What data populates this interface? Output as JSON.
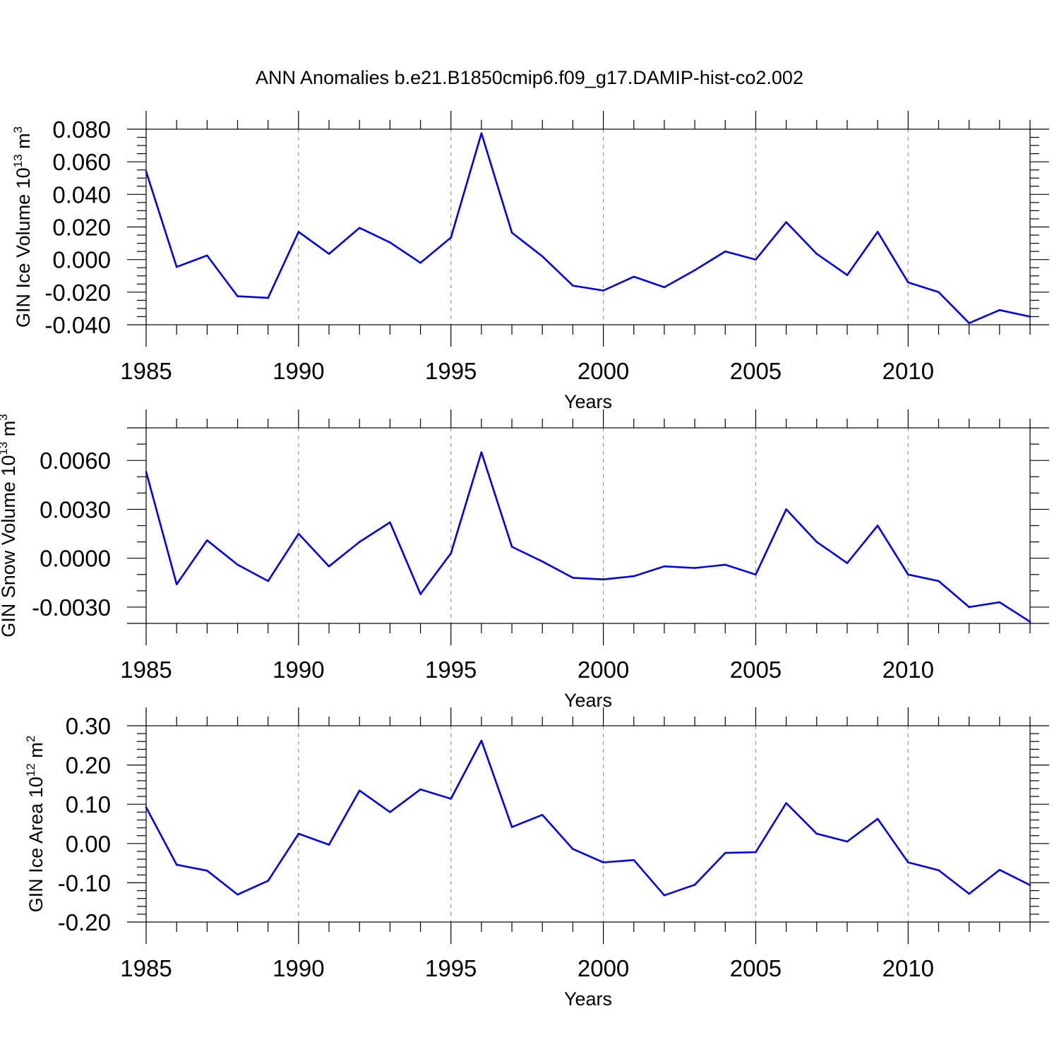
{
  "title": "ANN Anomalies b.e21.B1850cmip6.f09_g17.DAMIP-hist-co2.002",
  "colors": {
    "line": "#0000ee",
    "axis": "#000000",
    "grid": "#8c8c8c"
  },
  "chart_data": [
    {
      "type": "line",
      "ylabel": {
        "prefix": "GIN Ice Volume 10",
        "exp": "13",
        "unit": " m",
        "unit_exp": "3"
      },
      "xlabel": "Years",
      "xlim": [
        1985,
        2014
      ],
      "ylim": [
        -0.04,
        0.08
      ],
      "yticks": [
        "-0.040",
        "-0.020",
        "0.000",
        "0.020",
        "0.040",
        "0.060",
        "0.080"
      ],
      "yticks_values": [
        -0.04,
        -0.02,
        0.0,
        0.02,
        0.04,
        0.06,
        0.08
      ],
      "ymin_minor_step": 0.005,
      "xticks": [
        "1985",
        "1990",
        "1995",
        "2000",
        "2005",
        "2010"
      ],
      "xticks_values": [
        1985,
        1990,
        1995,
        2000,
        2005,
        2010
      ],
      "grid": "vertical-dashed",
      "x": [
        1985,
        1986,
        1987,
        1988,
        1989,
        1990,
        1991,
        1992,
        1993,
        1994,
        1995,
        1996,
        1997,
        1998,
        1999,
        2000,
        2001,
        2002,
        2003,
        2004,
        2005,
        2006,
        2007,
        2008,
        2009,
        2010,
        2011,
        2012,
        2013,
        2014
      ],
      "values": [
        0.054,
        -0.0045,
        0.0025,
        -0.0225,
        -0.0235,
        0.017,
        0.0035,
        0.0195,
        0.0105,
        -0.002,
        0.0135,
        0.0775,
        0.0165,
        0.002,
        -0.016,
        -0.019,
        -0.0105,
        -0.017,
        -0.0065,
        0.005,
        0.0,
        0.023,
        0.0035,
        -0.0095,
        0.017,
        -0.014,
        -0.02,
        -0.039,
        -0.031,
        -0.035
      ]
    },
    {
      "type": "line",
      "ylabel": {
        "prefix": "GIN Snow Volume 10",
        "exp": "13",
        "unit": " m",
        "unit_exp": "3"
      },
      "xlabel": "Years",
      "xlim": [
        1985,
        2014
      ],
      "ylim": [
        -0.004,
        0.008
      ],
      "yticks": [
        "-0.0030",
        "0.0000",
        "0.0030",
        "0.0060"
      ],
      "yticks_values": [
        -0.003,
        0.0,
        0.003,
        0.006
      ],
      "ymin_minor_step": 0.001,
      "xticks": [
        "1985",
        "1990",
        "1995",
        "2000",
        "2005",
        "2010"
      ],
      "xticks_values": [
        1985,
        1990,
        1995,
        2000,
        2005,
        2010
      ],
      "grid": "vertical-dashed",
      "x": [
        1985,
        1986,
        1987,
        1988,
        1989,
        1990,
        1991,
        1992,
        1993,
        1994,
        1995,
        1996,
        1997,
        1998,
        1999,
        2000,
        2001,
        2002,
        2003,
        2004,
        2005,
        2006,
        2007,
        2008,
        2009,
        2010,
        2011,
        2012,
        2013,
        2014
      ],
      "values": [
        0.0053,
        -0.0016,
        0.0011,
        -0.0004,
        -0.0014,
        0.0015,
        -0.0005,
        0.001,
        0.0022,
        -0.0022,
        0.0003,
        0.0065,
        0.0007,
        -0.0002,
        -0.0012,
        -0.0013,
        -0.0011,
        -0.0005,
        -0.0006,
        -0.0004,
        -0.001,
        0.003,
        0.001,
        -0.0003,
        0.002,
        -0.001,
        -0.0014,
        -0.003,
        -0.0027,
        -0.0039
      ]
    },
    {
      "type": "line",
      "ylabel": {
        "prefix": "GIN Ice Area 10",
        "exp": "12",
        "unit": " m",
        "unit_exp": "2"
      },
      "xlabel": "Years",
      "xlim": [
        1985,
        2014
      ],
      "ylim": [
        -0.2,
        0.3
      ],
      "yticks": [
        "-0.20",
        "-0.10",
        "0.00",
        "0.10",
        "0.20",
        "0.30"
      ],
      "yticks_values": [
        -0.2,
        -0.1,
        0.0,
        0.1,
        0.2,
        0.3
      ],
      "ymin_minor_step": 0.02,
      "xticks": [
        "1985",
        "1990",
        "1995",
        "2000",
        "2005",
        "2010"
      ],
      "xticks_values": [
        1985,
        1990,
        1995,
        2000,
        2005,
        2010
      ],
      "grid": "vertical-dashed",
      "x": [
        1985,
        1986,
        1987,
        1988,
        1989,
        1990,
        1991,
        1992,
        1993,
        1994,
        1995,
        1996,
        1997,
        1998,
        1999,
        2000,
        2001,
        2002,
        2003,
        2004,
        2005,
        2006,
        2007,
        2008,
        2009,
        2010,
        2011,
        2012,
        2013,
        2014
      ],
      "values": [
        0.092,
        -0.054,
        -0.069,
        -0.13,
        -0.095,
        0.025,
        -0.003,
        0.135,
        0.08,
        0.138,
        0.114,
        0.262,
        0.042,
        0.073,
        -0.014,
        -0.048,
        -0.042,
        -0.132,
        -0.105,
        -0.024,
        -0.022,
        0.103,
        0.025,
        0.005,
        0.063,
        -0.048,
        -0.068,
        -0.128,
        -0.067,
        -0.106
      ]
    }
  ]
}
